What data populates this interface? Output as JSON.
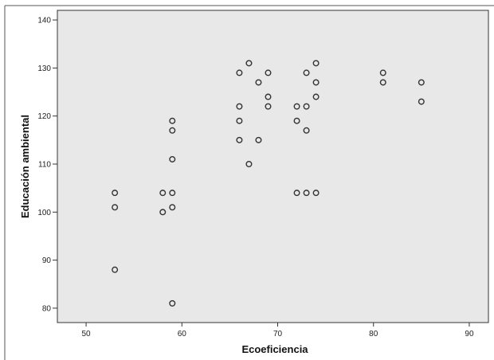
{
  "chart_data": {
    "type": "scatter",
    "title": "",
    "xlabel": "Ecoeficiencia",
    "ylabel": "Educación ambiental",
    "xlim": [
      47,
      92
    ],
    "ylim": [
      77,
      142
    ],
    "xticks": [
      50,
      60,
      70,
      80,
      90
    ],
    "yticks": [
      80,
      90,
      100,
      110,
      120,
      130,
      140
    ],
    "grid": false,
    "plot_background": "#e8e8e8",
    "marker": "hollow-circle",
    "marker_color": "#333333",
    "series": [
      {
        "points": [
          {
            "x": 53,
            "y": 104
          },
          {
            "x": 53,
            "y": 101
          },
          {
            "x": 53,
            "y": 88
          },
          {
            "x": 58,
            "y": 104
          },
          {
            "x": 58,
            "y": 100
          },
          {
            "x": 59,
            "y": 119
          },
          {
            "x": 59,
            "y": 117
          },
          {
            "x": 59,
            "y": 111
          },
          {
            "x": 59,
            "y": 104
          },
          {
            "x": 59,
            "y": 101
          },
          {
            "x": 59,
            "y": 81
          },
          {
            "x": 66,
            "y": 129
          },
          {
            "x": 66,
            "y": 122
          },
          {
            "x": 66,
            "y": 119
          },
          {
            "x": 66,
            "y": 115
          },
          {
            "x": 67,
            "y": 131
          },
          {
            "x": 67,
            "y": 110
          },
          {
            "x": 68,
            "y": 127
          },
          {
            "x": 68,
            "y": 115
          },
          {
            "x": 69,
            "y": 129
          },
          {
            "x": 69,
            "y": 124
          },
          {
            "x": 69,
            "y": 122
          },
          {
            "x": 72,
            "y": 122
          },
          {
            "x": 72,
            "y": 119
          },
          {
            "x": 72,
            "y": 104
          },
          {
            "x": 73,
            "y": 129
          },
          {
            "x": 73,
            "y": 122
          },
          {
            "x": 73,
            "y": 117
          },
          {
            "x": 73,
            "y": 104
          },
          {
            "x": 74,
            "y": 131
          },
          {
            "x": 74,
            "y": 127
          },
          {
            "x": 74,
            "y": 124
          },
          {
            "x": 74,
            "y": 104
          },
          {
            "x": 81,
            "y": 129
          },
          {
            "x": 81,
            "y": 127
          },
          {
            "x": 85,
            "y": 127
          },
          {
            "x": 85,
            "y": 123
          }
        ]
      }
    ]
  }
}
